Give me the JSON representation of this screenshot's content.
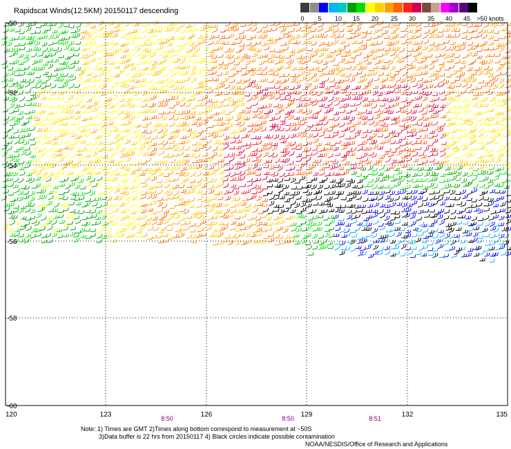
{
  "title": "Rapidscat Winds(12.5KM) 20150117 descending",
  "legend": {
    "colors": [
      "#3c3c3c",
      "#8c8c8c",
      "#0000ff",
      "#00b4ff",
      "#00c8c8",
      "#00a000",
      "#00e000",
      "#ffff00",
      "#ffd000",
      "#ffa000",
      "#ff6400",
      "#ff2020",
      "#d00050",
      "#7a4a3a",
      "#c8a08c",
      "#ff00ff",
      "#a000c8",
      "#5a0078",
      "#000000"
    ],
    "labels": [
      "0",
      "5",
      "10",
      "15",
      "20",
      "25",
      "30",
      "35",
      "40",
      "45",
      ">50 knots"
    ]
  },
  "axes": {
    "lon_labels": [
      "120",
      "123",
      "126",
      "129",
      "132",
      "135"
    ],
    "lat_labels": [
      "-50",
      "-52",
      "-54",
      "-56",
      "-58",
      "-60"
    ],
    "pass_times": [
      "8:50",
      "8:50",
      "8:51"
    ]
  },
  "notes": {
    "line1": "Note: 1) Times are GMT 2)Times along bottom correspond to measurement at ~50S",
    "line2": "3)Data buffer is 22 hrs from 20150117 4) Black circles indicate possible contamination",
    "credit": "NOAA/NESDIS/Office of Research and Applications"
  },
  "colors": {
    "black": "#000000",
    "blue": "#0000ff",
    "cyan": "#00b4ff",
    "green": "#00a000",
    "lightgreen": "#00e000",
    "yellow": "#ffff00",
    "gold": "#ffd000",
    "orange": "#ffa000",
    "darkorange": "#ff6400",
    "red": "#ff2020",
    "crimson": "#d00050"
  }
}
